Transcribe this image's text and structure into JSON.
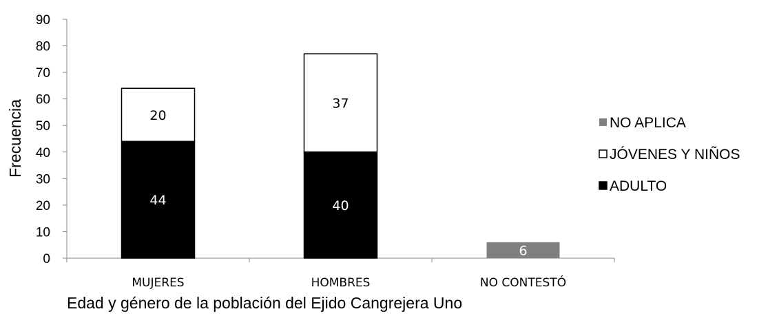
{
  "chart_data": {
    "type": "bar",
    "stacked": true,
    "categories": [
      "MUJERES",
      "HOMBRES",
      "NO CONTESTÓ"
    ],
    "series": [
      {
        "name": "ADULTO",
        "values": [
          44,
          40,
          null
        ],
        "color": "#000000",
        "label_color": "#ffffff"
      },
      {
        "name": "JÓVENES Y NIÑOS",
        "values": [
          20,
          37,
          null
        ],
        "color": "#ffffff",
        "label_color": "#000000"
      },
      {
        "name": "NO APLICA",
        "values": [
          null,
          null,
          6
        ],
        "color": "#808080",
        "label_color": "#ffffff"
      }
    ],
    "legend_order": [
      "NO APLICA",
      "JÓVENES Y NIÑOS",
      "ADULTO"
    ],
    "legend_position": "right",
    "xlabel": "Edad y género de la población del Ejido Cangrejera Uno",
    "ylabel": "Frecuencia",
    "ylim": [
      0,
      90
    ],
    "yticks": [
      0,
      10,
      20,
      30,
      40,
      50,
      60,
      70,
      80,
      90
    ],
    "grid": false
  }
}
